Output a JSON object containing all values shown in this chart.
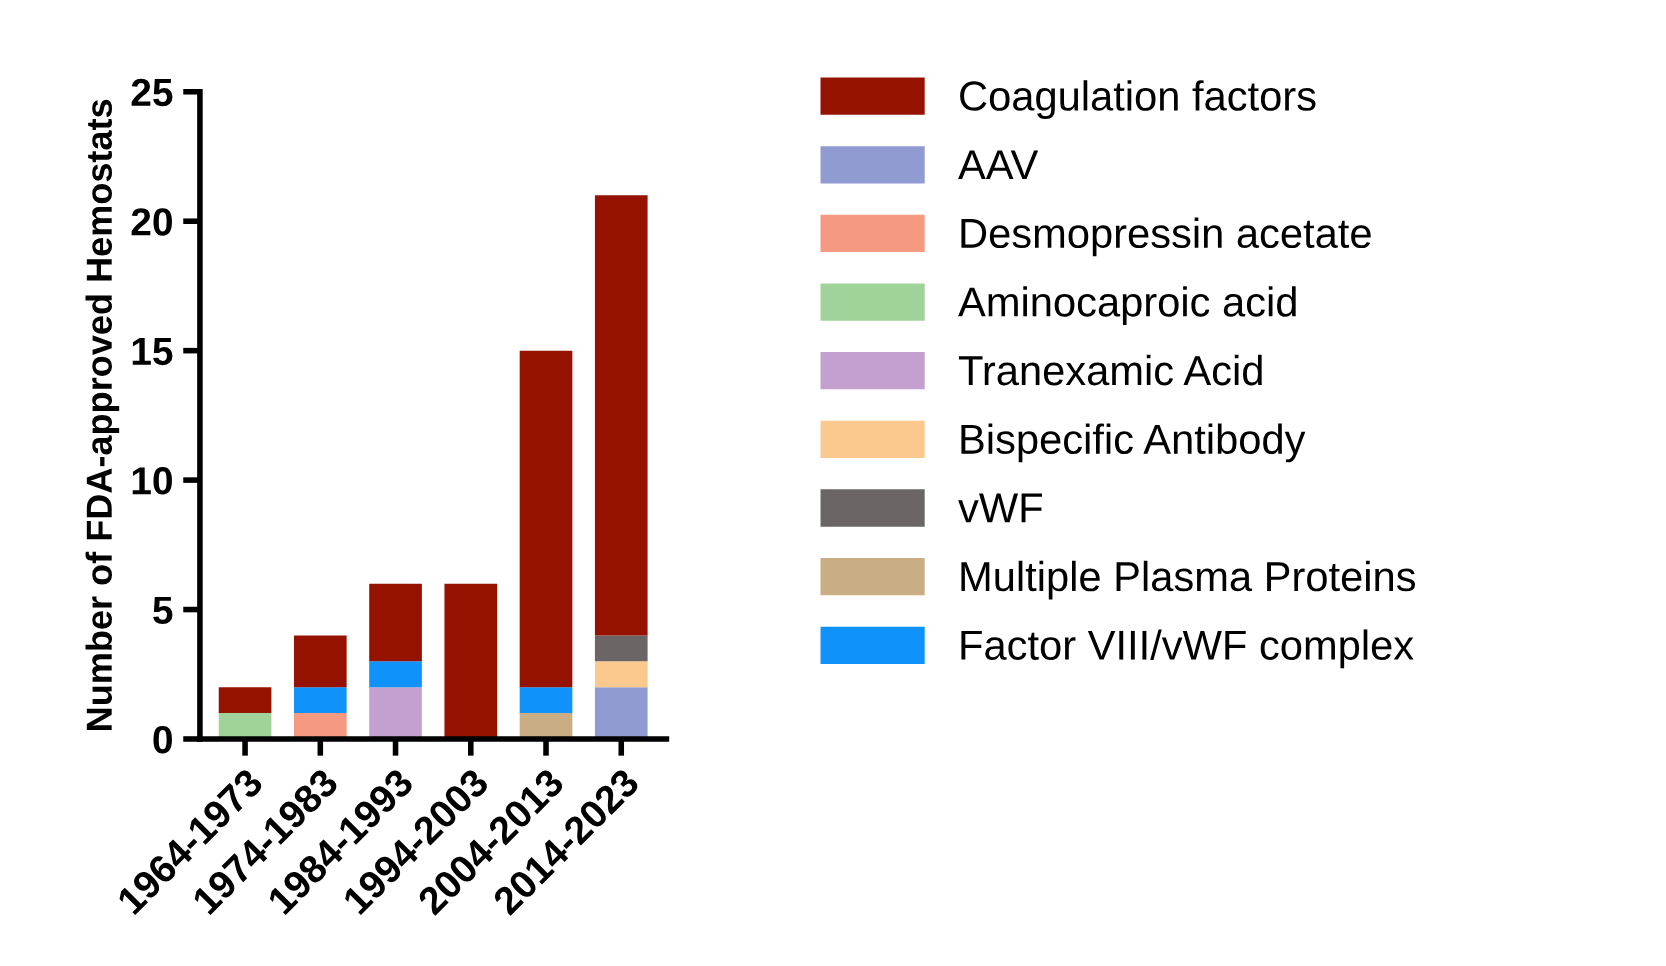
{
  "chart_data": {
    "type": "bar",
    "ylabel": "Number of FDA-approved Hemostats",
    "categories": [
      "1964-1973",
      "1974-1983",
      "1984-1993",
      "1994-2003",
      "2004-2013",
      "2014-2023"
    ],
    "stacked": true,
    "ylim": [
      0,
      25
    ],
    "yticks": [
      0,
      5,
      10,
      15,
      20,
      25
    ],
    "grid": false,
    "legend": "right",
    "series": [
      {
        "name": "AAV",
        "color": "#8f9bd1",
        "values": [
          0,
          0,
          0,
          0,
          0,
          2
        ]
      },
      {
        "name": "Desmopressin acetate",
        "color": "#f59a80",
        "values": [
          0,
          1,
          0,
          0,
          0,
          0
        ]
      },
      {
        "name": "Aminocaproic acid",
        "color": "#a0d39a",
        "values": [
          1,
          0,
          0,
          0,
          0,
          0
        ]
      },
      {
        "name": "Tranexamic Acid",
        "color": "#c3a0cf",
        "values": [
          0,
          0,
          2,
          0,
          0,
          0
        ]
      },
      {
        "name": "Bispecific Antibody",
        "color": "#fbc98e",
        "values": [
          0,
          0,
          0,
          0,
          0,
          1
        ]
      },
      {
        "name": "vWF",
        "color": "#6b6565",
        "values": [
          0,
          0,
          0,
          0,
          0,
          1
        ]
      },
      {
        "name": "Multiple Plasma Proteins",
        "color": "#c9ad85",
        "values": [
          0,
          0,
          0,
          0,
          1,
          0
        ]
      },
      {
        "name": "Factor VIII/vWF complex",
        "color": "#0f93fb",
        "values": [
          0,
          1,
          1,
          0,
          1,
          0
        ]
      },
      {
        "name": "Coagulation factors",
        "color": "#951200",
        "values": [
          1,
          2,
          3,
          6,
          13,
          17
        ]
      }
    ]
  }
}
